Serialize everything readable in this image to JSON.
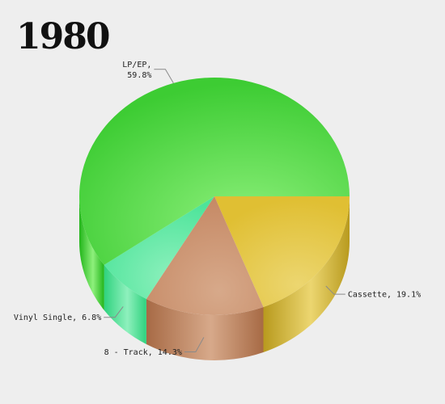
{
  "chart_data": {
    "type": "pie",
    "title": "1980",
    "slices": [
      {
        "label": "Cassette",
        "value": 19.1,
        "display": "Cassette, 19.1%",
        "color": "#e0bf33",
        "side": "#b89a1e",
        "light": "#ecd670"
      },
      {
        "label": "8 - Track",
        "value": 14.3,
        "display": "8 - Track, 14.3%",
        "color": "#c68a66",
        "side": "#a76a45",
        "light": "#d7a98a"
      },
      {
        "label": "Vinyl Single",
        "value": 6.8,
        "display": "Vinyl Single, 6.8%",
        "color": "#4de49a",
        "side": "#2fd27e",
        "light": "#8ef0bd"
      },
      {
        "label": "LP/EP",
        "value": 59.8,
        "display_lines": [
          "LP/EP,",
          "59.8%"
        ],
        "color": "#3dcc33",
        "side": "#22b51a",
        "light": "#8ef07c"
      }
    ],
    "start_angle_deg": 0,
    "direction": "clockwise",
    "style": "3d",
    "legend": "none"
  }
}
